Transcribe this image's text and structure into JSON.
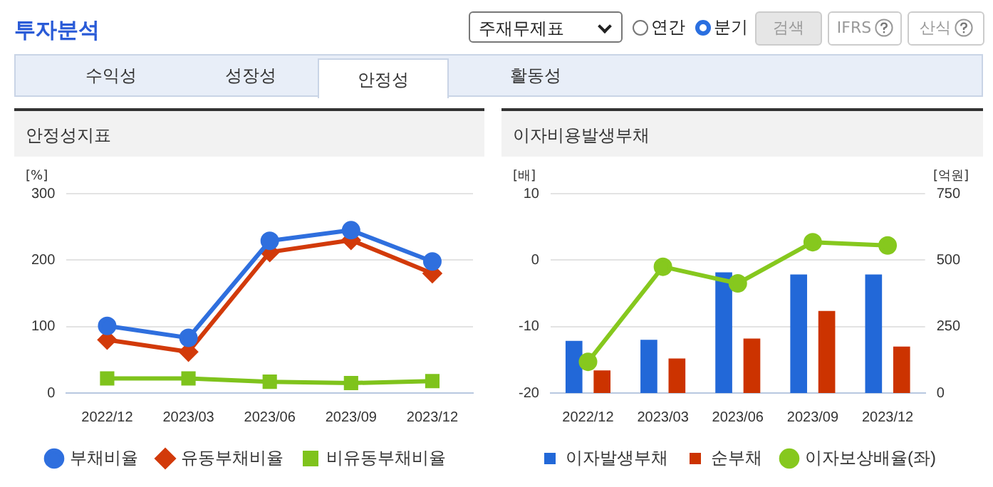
{
  "chart_data": [
    {
      "type": "other",
      "title": "투자분석",
      "annotations": [
        "주재무제표",
        "연간",
        "분기",
        "검색",
        "IFRS",
        "산식",
        "수익성",
        "성장성",
        "안정성",
        "활동성"
      ]
    },
    {
      "type": "line",
      "title": "안정성지표",
      "ylabel": "[%]",
      "categories": [
        "2022/12",
        "2023/03",
        "2023/06",
        "2023/09",
        "2023/12"
      ],
      "ylim": [
        0,
        300
      ],
      "yticks": [
        0,
        100,
        200,
        300
      ],
      "grid": "y",
      "legend": "bottom",
      "series": [
        {
          "name": "부채비율",
          "color": "#2f6fde",
          "marker": "circle",
          "values": [
            101,
            83,
            229,
            245,
            198
          ]
        },
        {
          "name": "유동부채비율",
          "color": "#d23a0a",
          "marker": "diamond",
          "values": [
            80,
            62,
            212,
            230,
            180
          ]
        },
        {
          "name": "비유동부채비율",
          "color": "#7fc31c",
          "marker": "square",
          "values": [
            22,
            22,
            17,
            15,
            18
          ]
        }
      ]
    },
    {
      "type": "bar",
      "title": "이자비용발생부채",
      "ylabel": "[배]",
      "y2label": "[억원]",
      "categories": [
        "2022/12",
        "2023/03",
        "2023/06",
        "2023/09",
        "2023/12"
      ],
      "ylim": [
        -20,
        10
      ],
      "yticks": [
        -20,
        -10,
        0,
        10
      ],
      "y2lim": [
        0,
        750
      ],
      "y2ticks": [
        0,
        250,
        500,
        750
      ],
      "grid": "y",
      "legend": "bottom",
      "series": [
        {
          "name": "이자발생부채",
          "type": "bar",
          "axis": "y2",
          "color": "#2268d8",
          "values": [
            196,
            200,
            454,
            446,
            446
          ]
        },
        {
          "name": "순부채",
          "type": "bar",
          "axis": "y2",
          "color": "#cc3300",
          "values": [
            85,
            130,
            205,
            309,
            175
          ]
        },
        {
          "name": "이자보상배율(좌)",
          "type": "line",
          "axis": "y",
          "color": "#86c81e",
          "marker": "circle",
          "values": [
            -15.3,
            -1.0,
            -3.5,
            2.7,
            2.2
          ]
        }
      ]
    }
  ]
}
